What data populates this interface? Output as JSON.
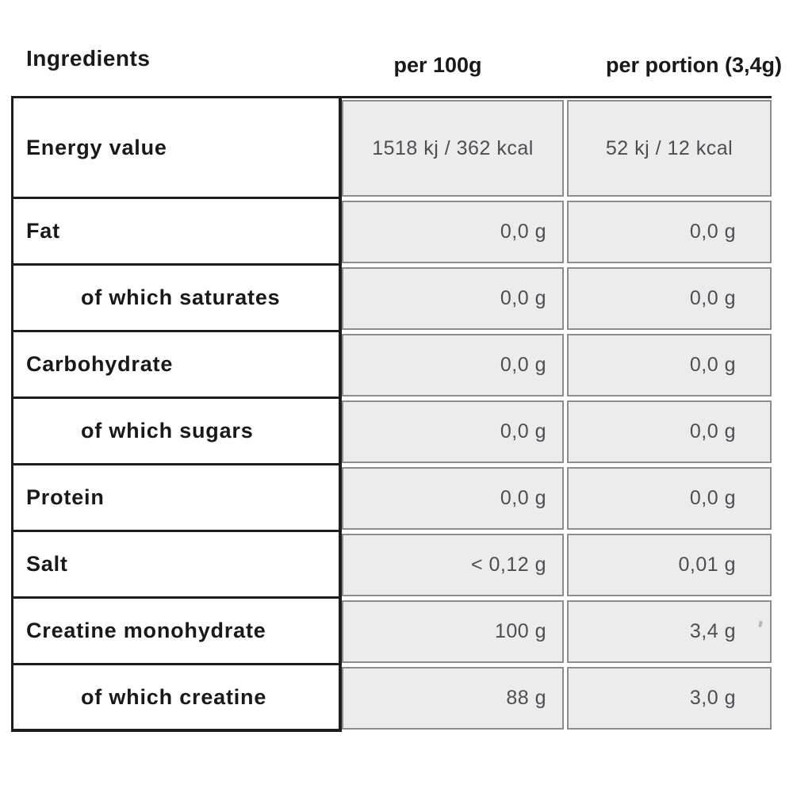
{
  "header": {
    "ingredients_label": "Ingredients",
    "col_per_100g": "per 100g",
    "col_per_portion": "per portion (3,4g)"
  },
  "table": {
    "rows": [
      {
        "label": "Energy value",
        "indent": false,
        "per_100g": "1518 kj / 362 kcal",
        "per_portion": "52 kj / 12 kcal"
      },
      {
        "label": "Fat",
        "indent": false,
        "per_100g": "0,0 g",
        "per_portion": "0,0 g"
      },
      {
        "label": "of which saturates",
        "indent": true,
        "per_100g": "0,0 g",
        "per_portion": "0,0 g"
      },
      {
        "label": "Carbohydrate",
        "indent": false,
        "per_100g": "0,0 g",
        "per_portion": "0,0 g"
      },
      {
        "label": "of which sugars",
        "indent": true,
        "per_100g": "0,0 g",
        "per_portion": "0,0 g"
      },
      {
        "label": "Protein",
        "indent": false,
        "per_100g": "0,0 g",
        "per_portion": "0,0 g"
      },
      {
        "label": "Salt",
        "indent": false,
        "per_100g": "< 0,12 g",
        "per_portion": "0,01 g"
      },
      {
        "label": "Creatine monohydrate",
        "indent": false,
        "per_100g": "100 g",
        "per_portion": "3,4 g"
      },
      {
        "label": "of which creatine",
        "indent": true,
        "per_100g": "88 g",
        "per_portion": "3,0 g"
      }
    ]
  },
  "colors": {
    "background": "#ffffff",
    "heading_text": "#191919",
    "label_text": "#191919",
    "value_text": "#4d4d55",
    "cell_background": "#ececec",
    "thick_border": "#1d1d1d",
    "thin_border": "#8d8d8d"
  }
}
